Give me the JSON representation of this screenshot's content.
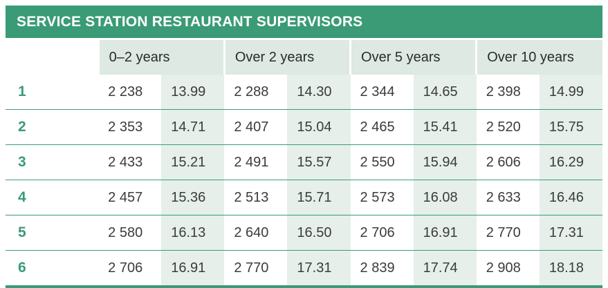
{
  "title": "SERVICE STATION RESTAURANT SUPERVISORS",
  "columns": [
    "0–2 years",
    "Over 2 years",
    "Over 5 years",
    "Over 10 years"
  ],
  "rows": [
    {
      "grade": "1",
      "cells": [
        "2 238",
        "13.99",
        "2 288",
        "14.30",
        "2 344",
        "14.65",
        "2 398",
        "14.99"
      ]
    },
    {
      "grade": "2",
      "cells": [
        "2 353",
        "14.71",
        "2 407",
        "15.04",
        "2 465",
        "15.41",
        "2 520",
        "15.75"
      ]
    },
    {
      "grade": "3",
      "cells": [
        "2 433",
        "15.21",
        "2 491",
        "15.57",
        "2 550",
        "15.94",
        "2 606",
        "16.29"
      ]
    },
    {
      "grade": "4",
      "cells": [
        "2 457",
        "15.36",
        "2 513",
        "15.71",
        "2 573",
        "16.08",
        "2 633",
        "16.46"
      ]
    },
    {
      "grade": "5",
      "cells": [
        "2 580",
        "16.13",
        "2 640",
        "16.50",
        "2 706",
        "16.91",
        "2 770",
        "17.31"
      ]
    },
    {
      "grade": "6",
      "cells": [
        "2 706",
        "16.91",
        "2 770",
        "17.31",
        "2 839",
        "17.74",
        "2 908",
        "18.18"
      ]
    }
  ],
  "colors": {
    "accent": "#3a9b76",
    "header_bg": "#dde9e2",
    "alt_cell_bg": "#e6efea"
  }
}
